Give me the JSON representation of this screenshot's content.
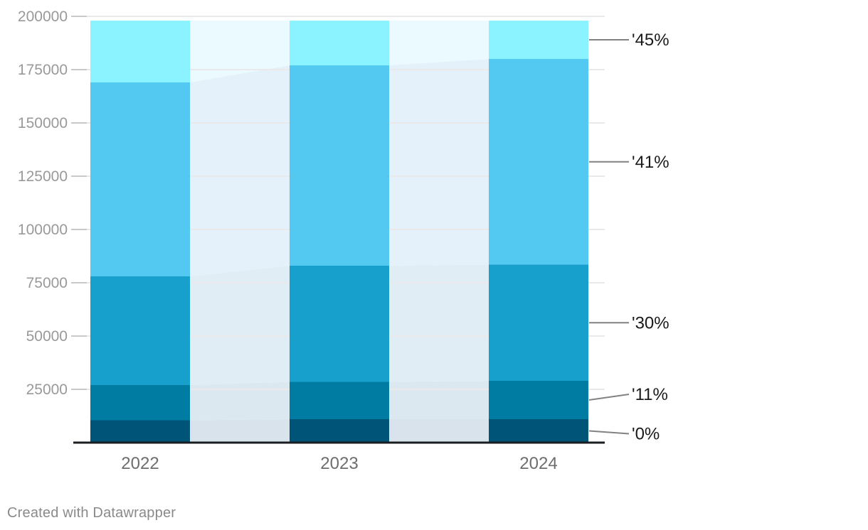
{
  "chart_data": {
    "type": "bar",
    "stacked": true,
    "title": "",
    "xlabel": "",
    "ylabel": "",
    "categories": [
      "2022",
      "2023",
      "2024"
    ],
    "series": [
      {
        "name": "'0%",
        "color": "#005478",
        "area_color": "#d8e3eb",
        "values": [
          10500,
          11000,
          11000
        ]
      },
      {
        "name": "'11%",
        "color": "#007ca2",
        "area_color": "#dce8f0",
        "values": [
          16500,
          17500,
          18000
        ]
      },
      {
        "name": "'30%",
        "color": "#18a0cc",
        "area_color": "#e0edf5",
        "values": [
          51000,
          54500,
          54500
        ]
      },
      {
        "name": "'41%",
        "color": "#53c8f0",
        "area_color": "#e4f1fa",
        "values": [
          91000,
          94000,
          96500
        ]
      },
      {
        "name": "'45%",
        "color": "#8bf2ff",
        "area_color": "#eafafe",
        "values": [
          29000,
          21000,
          18000
        ]
      }
    ],
    "totals": [
      198000,
      198000,
      198000
    ],
    "ylim": [
      0,
      200000
    ],
    "ytick_step": 25000,
    "ytick_labels": [
      "25000",
      "50000",
      "75000",
      "100000",
      "125000",
      "150000",
      "175000",
      "200000"
    ],
    "grid": true,
    "legend_position": "right-direct-labels",
    "connected_columns": true
  },
  "style": {
    "background": "#ffffff",
    "grid_color": "#e9e9e9",
    "tick_color": "#c9c9c9",
    "baseline_color": "#1a1d21",
    "ytick_label_color": "#999999",
    "xtick_label_color": "#6e6e6e",
    "series_label_color": "#1a1a1a",
    "connector_color": "#828282"
  },
  "footer": {
    "credit": "Created with Datawrapper"
  }
}
